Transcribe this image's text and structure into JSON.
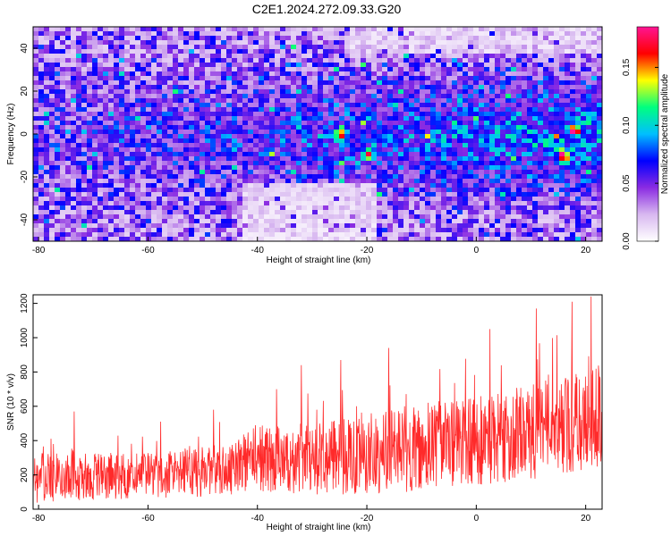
{
  "title": "C2E1.2024.272.09.33.G20",
  "chart_data": [
    {
      "type": "heatmap",
      "xlabel": "Height of straight line (km)",
      "ylabel": "Frequency (Hz)",
      "xlim": [
        -81,
        23
      ],
      "ylim": [
        -50,
        50
      ],
      "xticks": [
        -80,
        -60,
        -40,
        -20,
        0,
        20
      ],
      "yticks": [
        -40,
        -20,
        0,
        20,
        40
      ],
      "colorbar": {
        "label": "Normalized spectral amplitude",
        "range": [
          0,
          0.185
        ],
        "ticks": [
          0.0,
          0.05,
          0.1,
          0.15
        ],
        "tick_labels": [
          "0.00",
          "0.05",
          "0.10",
          "0.15"
        ],
        "colormap": [
          "#ffffff",
          "#d8b8f0",
          "#8a2be2",
          "#0000ff",
          "#00bfff",
          "#00ff7f",
          "#ffff00",
          "#ff0000",
          "#ff1493"
        ]
      },
      "hotspots": [
        {
          "x": -25,
          "y": 0,
          "value": 0.16
        },
        {
          "x": 16,
          "y": -10,
          "value": 0.17
        },
        {
          "x": 18,
          "y": 2,
          "value": 0.16
        },
        {
          "x": -20,
          "y": -10,
          "value": 0.14
        },
        {
          "x": -78,
          "y": 29,
          "value": 0.11
        }
      ]
    },
    {
      "type": "line",
      "xlabel": "Height of straight line (km)",
      "ylabel": "SNR (10 * v/v)",
      "xlim": [
        -81,
        23
      ],
      "ylim": [
        0,
        1250
      ],
      "xticks": [
        -80,
        -60,
        -40,
        -20,
        0,
        20
      ],
      "yticks": [
        0,
        200,
        400,
        600,
        800,
        1000,
        1200
      ],
      "color": "#ff2a2a",
      "envelope": [
        {
          "x": -81,
          "base": 180,
          "spread": 180
        },
        {
          "x": -70,
          "base": 190,
          "spread": 170
        },
        {
          "x": -60,
          "base": 200,
          "spread": 170
        },
        {
          "x": -45,
          "base": 230,
          "spread": 190
        },
        {
          "x": -40,
          "base": 300,
          "spread": 250
        },
        {
          "x": -30,
          "base": 290,
          "spread": 280
        },
        {
          "x": -20,
          "base": 330,
          "spread": 300
        },
        {
          "x": -10,
          "base": 360,
          "spread": 320
        },
        {
          "x": 0,
          "base": 400,
          "spread": 330
        },
        {
          "x": 10,
          "base": 450,
          "spread": 350
        },
        {
          "x": 20,
          "base": 520,
          "spread": 380
        },
        {
          "x": 23,
          "base": 560,
          "spread": 380
        }
      ],
      "peaks": [
        {
          "x": -73.5,
          "y": 570
        },
        {
          "x": -48,
          "y": 580
        },
        {
          "x": -36.5,
          "y": 700
        },
        {
          "x": -32,
          "y": 840
        },
        {
          "x": -24.8,
          "y": 870
        },
        {
          "x": -16,
          "y": 940
        },
        {
          "x": 2.5,
          "y": 1050
        },
        {
          "x": 11,
          "y": 1170
        },
        {
          "x": 17.5,
          "y": 1210
        },
        {
          "x": 21,
          "y": 1240
        }
      ]
    }
  ]
}
